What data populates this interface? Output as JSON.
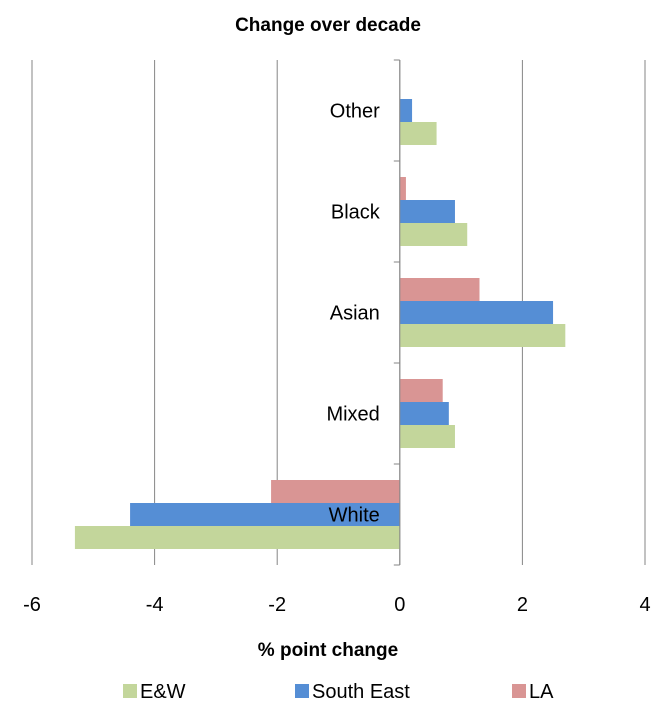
{
  "chart_data": {
    "type": "bar",
    "orientation": "horizontal",
    "title": "Change over decade",
    "xlabel": "% point change",
    "ylabel": "",
    "xlim": [
      -6,
      4
    ],
    "xticks": [
      "-6",
      "-4",
      "-2",
      "0",
      "2",
      "4"
    ],
    "grid": "vertical",
    "legend_position": "bottom",
    "categories": [
      "White",
      "Mixed",
      "Asian",
      "Black",
      "Other"
    ],
    "series": [
      {
        "name": "E&W",
        "color": "#c3d69b",
        "values": [
          -5.3,
          0.9,
          2.7,
          1.1,
          0.6
        ]
      },
      {
        "name": "South East",
        "color": "#558ed5",
        "values": [
          -4.4,
          0.8,
          2.5,
          0.9,
          0.2
        ]
      },
      {
        "name": "LA",
        "color": "#d99594",
        "values": [
          -2.1,
          0.7,
          1.3,
          0.1,
          0.0
        ]
      }
    ]
  }
}
